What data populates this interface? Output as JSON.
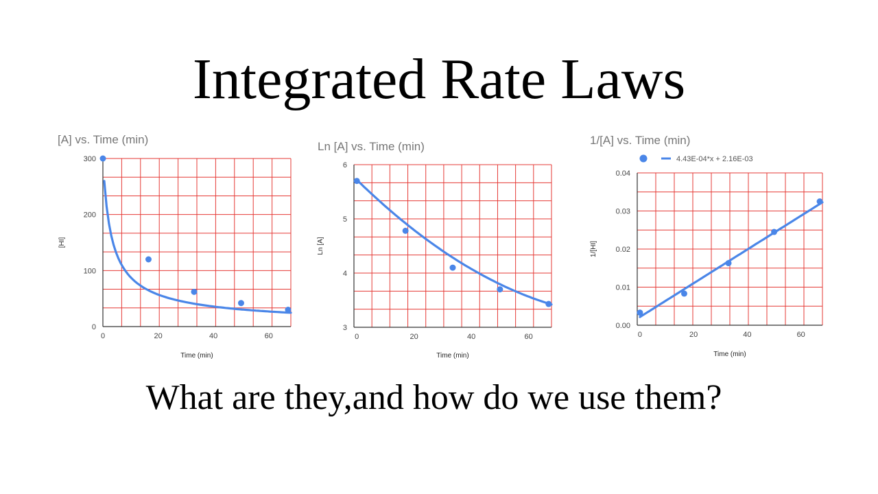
{
  "slide": {
    "title": "Integrated Rate Laws",
    "subtitle": "What are they,and how do we use them?"
  },
  "chart_data": [
    {
      "type": "scatter",
      "title": "[A] vs. Time (min)",
      "xlabel": "Time (min)",
      "ylabel": "[HI]",
      "xlim": [
        0,
        68
      ],
      "ylim": [
        0,
        300
      ],
      "xticks": [
        0,
        20,
        40,
        60
      ],
      "yticks": [
        0,
        100,
        200,
        300
      ],
      "grid": true,
      "grid_color": "#e53935",
      "series_color": "#4a86e8",
      "points": [
        [
          0,
          300
        ],
        [
          16.5,
          120
        ],
        [
          33,
          62
        ],
        [
          50,
          42
        ],
        [
          67,
          30
        ]
      ],
      "trendline": "power"
    },
    {
      "type": "scatter",
      "title": "Ln [A] vs. Time (min)",
      "xlabel": "Time (min)",
      "ylabel": "Ln [A]",
      "xlim": [
        -1,
        68
      ],
      "ylim": [
        3,
        6
      ],
      "xticks": [
        0,
        20,
        40,
        60
      ],
      "yticks": [
        3,
        4,
        5,
        6
      ],
      "grid": true,
      "grid_color": "#e53935",
      "series_color": "#4a86e8",
      "points": [
        [
          0,
          5.7
        ],
        [
          17,
          4.78
        ],
        [
          33.5,
          4.1
        ],
        [
          50,
          3.7
        ],
        [
          67,
          3.43
        ]
      ],
      "trendline": "polynomial"
    },
    {
      "type": "scatter",
      "title": "1/[A] vs. Time (min)",
      "xlabel": "Time (min)",
      "ylabel": "1/[HI]",
      "xlim": [
        -1,
        68
      ],
      "ylim": [
        0,
        0.04
      ],
      "xticks": [
        0,
        20,
        40,
        60
      ],
      "yticks": [
        0,
        0.01,
        0.02,
        0.03,
        0.04
      ],
      "ytick_labels": [
        "0.00",
        "0.01",
        "0.02",
        "0.03",
        "0.04"
      ],
      "grid": true,
      "grid_color": "#e53935",
      "series_color": "#4a86e8",
      "points": [
        [
          0,
          0.0033
        ],
        [
          16.5,
          0.0083
        ],
        [
          33,
          0.0163
        ],
        [
          50,
          0.0245
        ],
        [
          67,
          0.0325
        ]
      ],
      "trendline": "linear",
      "legend": "4.43E-04*x + 2.16E-03",
      "legend_position": "top"
    }
  ]
}
